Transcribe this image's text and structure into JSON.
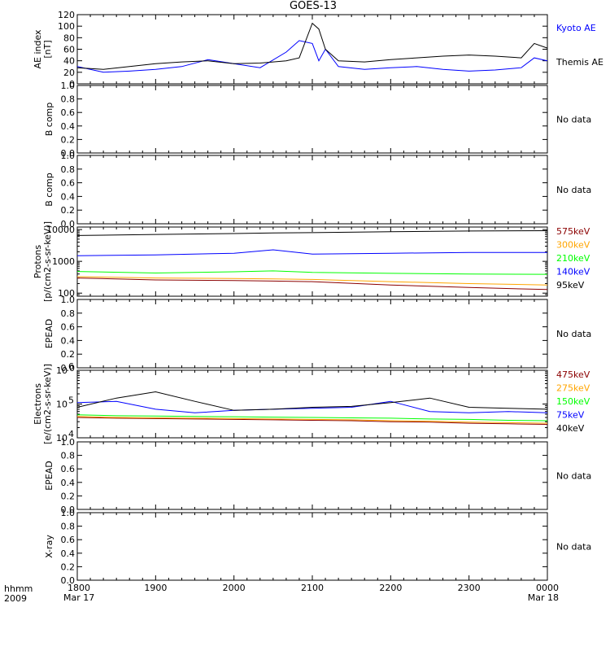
{
  "title": "GOES-13",
  "corner": {
    "line1": "hhmm",
    "line2": "2009"
  },
  "time_axis": {
    "start": "2009-03-17 18:00",
    "end": "2009-03-18 00:00",
    "tick_labels": [
      "1800",
      "1900",
      "2000",
      "2100",
      "2200",
      "2300",
      "0000"
    ],
    "date_labels": {
      "start": "Mar 17",
      "end": "Mar 18"
    }
  },
  "no_data_text": "No data",
  "colors": {
    "black": "#000000",
    "blue": "#0000ff",
    "green": "#00ff00",
    "orange": "#ffa500",
    "darkred": "#8b0000"
  },
  "chart_data": [
    {
      "type": "line",
      "ylabel": "AE index\n[nT]",
      "scale": "linear",
      "ylim": [
        0,
        120
      ],
      "yticks": [
        0,
        20,
        40,
        60,
        80,
        100,
        120
      ],
      "x": [
        "18:00",
        "18:20",
        "18:40",
        "19:00",
        "19:20",
        "19:40",
        "20:00",
        "20:20",
        "20:40",
        "20:50",
        "21:00",
        "21:05",
        "21:10",
        "21:20",
        "21:40",
        "22:00",
        "22:20",
        "22:40",
        "23:00",
        "23:20",
        "23:40",
        "23:50",
        "00:00"
      ],
      "series": [
        {
          "name": "Kyoto AE",
          "color": "#0000ff",
          "values": [
            30,
            20,
            22,
            25,
            30,
            42,
            35,
            28,
            55,
            75,
            70,
            40,
            60,
            30,
            25,
            28,
            30,
            25,
            22,
            24,
            28,
            45,
            40
          ]
        },
        {
          "name": "Themis AE",
          "color": "#000000",
          "values": [
            28,
            25,
            30,
            35,
            38,
            40,
            35,
            36,
            40,
            45,
            105,
            95,
            60,
            40,
            38,
            42,
            45,
            48,
            50,
            48,
            45,
            70,
            62
          ]
        }
      ],
      "legend": [
        "Kyoto AE",
        "Themis AE"
      ]
    },
    {
      "type": "line",
      "ylabel": "B comp",
      "ylim": [
        0,
        1
      ],
      "yticks": [
        0.0,
        0.2,
        0.4,
        0.6,
        0.8,
        1.0
      ],
      "series": [],
      "no_data": true
    },
    {
      "type": "line",
      "ylabel": "B comp",
      "ylim": [
        0,
        1
      ],
      "yticks": [
        0.0,
        0.2,
        0.4,
        0.6,
        0.8,
        1.0
      ],
      "series": [],
      "no_data": true
    },
    {
      "type": "line",
      "ylabel": "Protons\n[p/(cm2-s-sr-keV)]",
      "scale": "log",
      "ylim": [
        80,
        12000
      ],
      "yticks": [
        100,
        1000,
        10000
      ],
      "x": [
        "18:00",
        "19:00",
        "20:00",
        "20:30",
        "21:00",
        "22:00",
        "23:00",
        "00:00"
      ],
      "series": [
        {
          "name": "575keV",
          "color": "#8b0000",
          "values": [
            300,
            260,
            250,
            240,
            230,
            180,
            150,
            130
          ]
        },
        {
          "name": "300keV",
          "color": "#ffa500",
          "values": [
            330,
            300,
            290,
            280,
            270,
            230,
            200,
            180
          ]
        },
        {
          "name": "210keV",
          "color": "#00ff00",
          "values": [
            480,
            430,
            470,
            500,
            450,
            420,
            400,
            390
          ]
        },
        {
          "name": "140keV",
          "color": "#0000ff",
          "values": [
            1500,
            1600,
            1800,
            2300,
            1700,
            1800,
            1900,
            1900
          ]
        },
        {
          "name": "95keV",
          "color": "#000000",
          "values": [
            6500,
            7000,
            7500,
            7800,
            8000,
            8500,
            9000,
            9200
          ]
        }
      ],
      "legend": [
        "575keV",
        "300keV",
        "210keV",
        "140keV",
        "95keV"
      ]
    },
    {
      "type": "line",
      "ylabel": "EPEAD",
      "ylim": [
        0,
        1
      ],
      "yticks": [
        0.0,
        0.2,
        0.4,
        0.6,
        0.8,
        1.0
      ],
      "series": [],
      "no_data": true
    },
    {
      "type": "line",
      "ylabel": "Electrons\n[e/(cm2-s-sr-keV)]",
      "scale": "log",
      "ylim": [
        10000,
        1000000
      ],
      "yticks": [
        10000,
        100000,
        1000000
      ],
      "x": [
        "18:00",
        "18:30",
        "19:00",
        "19:30",
        "20:00",
        "20:30",
        "21:00",
        "21:30",
        "22:00",
        "22:30",
        "23:00",
        "23:30",
        "00:00"
      ],
      "series": [
        {
          "name": "475keV",
          "color": "#8b0000",
          "values": [
            40000,
            38000,
            37000,
            36000,
            35000,
            34000,
            33000,
            32000,
            30000,
            29000,
            27000,
            26000,
            25000
          ]
        },
        {
          "name": "275keV",
          "color": "#ffa500",
          "values": [
            43000,
            40000,
            39000,
            38000,
            37000,
            36000,
            35000,
            34000,
            32000,
            31000,
            29000,
            28000,
            27000
          ]
        },
        {
          "name": "150keV",
          "color": "#00ff00",
          "values": [
            48000,
            45000,
            44000,
            43000,
            42000,
            41000,
            40000,
            39000,
            38000,
            36000,
            35000,
            33000,
            32000
          ]
        },
        {
          "name": "75keV",
          "color": "#0000ff",
          "values": [
            110000,
            120000,
            70000,
            55000,
            65000,
            70000,
            75000,
            80000,
            120000,
            60000,
            55000,
            60000,
            55000
          ]
        },
        {
          "name": "40keV",
          "color": "#000000",
          "values": [
            80000,
            150000,
            230000,
            120000,
            65000,
            70000,
            80000,
            85000,
            110000,
            150000,
            80000,
            75000,
            70000
          ]
        }
      ],
      "legend": [
        "475keV",
        "275keV",
        "150keV",
        "75keV",
        "40keV"
      ]
    },
    {
      "type": "line",
      "ylabel": "EPEAD",
      "ylim": [
        0,
        1
      ],
      "yticks": [
        0.0,
        0.2,
        0.4,
        0.6,
        0.8,
        1.0
      ],
      "series": [],
      "no_data": true
    },
    {
      "type": "line",
      "ylabel": "X-ray",
      "ylim": [
        0,
        1
      ],
      "yticks": [
        0.0,
        0.2,
        0.4,
        0.6,
        0.8,
        1.0
      ],
      "series": [],
      "no_data": true
    }
  ]
}
